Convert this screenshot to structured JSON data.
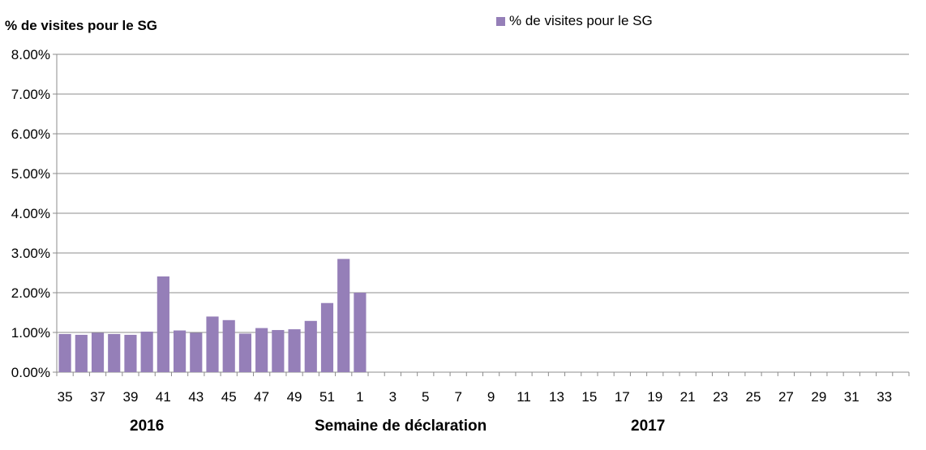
{
  "chart_data": {
    "type": "bar",
    "ylabel": "% de visites pour le SG",
    "xlabel": "Semaine de déclaration",
    "year_labels": [
      "2016",
      "2017"
    ],
    "legend": [
      "% de visites pour le SG"
    ],
    "legend_position": "top-right",
    "grid": true,
    "ylim": [
      0,
      0.08
    ],
    "yticks": [
      "0.00%",
      "1.00%",
      "2.00%",
      "3.00%",
      "4.00%",
      "5.00%",
      "6.00%",
      "7.00%",
      "8.00%"
    ],
    "categories": [
      "35",
      "36",
      "37",
      "38",
      "39",
      "40",
      "41",
      "42",
      "43",
      "44",
      "45",
      "46",
      "47",
      "48",
      "49",
      "50",
      "51",
      "52",
      "1",
      "2",
      "3",
      "4",
      "5",
      "6",
      "7",
      "8",
      "9",
      "10",
      "11",
      "12",
      "13",
      "14",
      "15",
      "16",
      "17",
      "18",
      "19",
      "20",
      "21",
      "22",
      "23",
      "24",
      "25",
      "26",
      "27",
      "28",
      "29",
      "30",
      "31",
      "32",
      "33",
      "34"
    ],
    "xtick_labels": [
      "35",
      "37",
      "39",
      "41",
      "43",
      "45",
      "47",
      "49",
      "51",
      "1",
      "3",
      "5",
      "7",
      "9",
      "11",
      "13",
      "15",
      "17",
      "19",
      "21",
      "23",
      "25",
      "27",
      "29",
      "31",
      "33"
    ],
    "series": [
      {
        "name": "% de visites pour le SG",
        "color": "#957fb8",
        "values": [
          0.0096,
          0.0094,
          0.0099,
          0.0096,
          0.0094,
          0.0102,
          0.0241,
          0.0105,
          0.0099,
          0.014,
          0.0131,
          0.0097,
          0.0111,
          0.0106,
          0.0108,
          0.0129,
          0.0174,
          0.0285,
          0.02,
          null,
          null,
          null,
          null,
          null,
          null,
          null,
          null,
          null,
          null,
          null,
          null,
          null,
          null,
          null,
          null,
          null,
          null,
          null,
          null,
          null,
          null,
          null,
          null,
          null,
          null,
          null,
          null,
          null,
          null,
          null,
          null,
          null
        ]
      }
    ]
  }
}
